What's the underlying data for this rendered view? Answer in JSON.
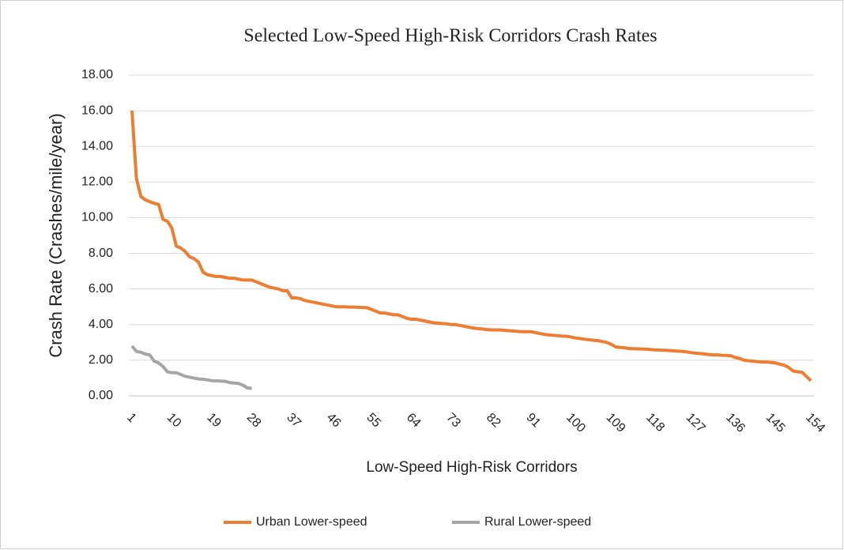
{
  "chart_data": {
    "type": "line",
    "title": "Selected Low-Speed High-Risk Corridors Crash Rates",
    "xlabel": "Low-Speed High-Risk Corridors",
    "ylabel": "Crash Rate (Crashes/mile/year)",
    "categories": [
      "1",
      null,
      null,
      null,
      null,
      null,
      null,
      null,
      null,
      "10",
      null,
      null,
      null,
      null,
      null,
      null,
      null,
      null,
      "19",
      null,
      null,
      null,
      null,
      null,
      null,
      null,
      null,
      "28",
      null,
      null,
      null,
      null,
      null,
      null,
      null,
      null,
      "37",
      null,
      null,
      null,
      null,
      null,
      null,
      null,
      null,
      "46",
      null,
      null,
      null,
      null,
      null,
      null,
      null,
      null,
      "55",
      null,
      null,
      null,
      null,
      null,
      null,
      null,
      null,
      "64",
      null,
      null,
      null,
      null,
      null,
      null,
      null,
      null,
      "73",
      null,
      null,
      null,
      null,
      null,
      null,
      null,
      null,
      "82",
      null,
      null,
      null,
      null,
      null,
      null,
      null,
      null,
      "91",
      null,
      null,
      null,
      null,
      null,
      null,
      null,
      null,
      "100",
      null,
      null,
      null,
      null,
      null,
      null,
      null,
      null,
      "109",
      null,
      null,
      null,
      null,
      null,
      null,
      null,
      null,
      "118",
      null,
      null,
      null,
      null,
      null,
      null,
      null,
      null,
      "127",
      null,
      null,
      null,
      null,
      null,
      null,
      null,
      null,
      "136",
      null,
      null,
      null,
      null,
      null,
      null,
      null,
      null,
      "145",
      null,
      null,
      null,
      null,
      null,
      null,
      null,
      null,
      "154"
    ],
    "series": [
      {
        "name": "Urban Lower-speed",
        "color": "#ed7d31",
        "values": [
          16.0,
          12.2,
          11.2,
          11.0,
          10.9,
          10.8,
          10.75,
          9.9,
          9.8,
          9.4,
          8.4,
          8.3,
          8.1,
          7.8,
          7.7,
          7.5,
          6.95,
          6.8,
          6.75,
          6.7,
          6.7,
          6.65,
          6.6,
          6.6,
          6.55,
          6.5,
          6.5,
          6.5,
          6.4,
          6.3,
          6.2,
          6.1,
          6.05,
          6.0,
          5.9,
          5.9,
          5.5,
          5.5,
          5.45,
          5.35,
          5.3,
          5.25,
          5.2,
          5.15,
          5.1,
          5.05,
          5.0,
          5.0,
          5.0,
          4.98,
          4.98,
          4.97,
          4.96,
          4.95,
          4.85,
          4.75,
          4.65,
          4.65,
          4.6,
          4.55,
          4.55,
          4.45,
          4.35,
          4.3,
          4.3,
          4.25,
          4.2,
          4.15,
          4.1,
          4.08,
          4.06,
          4.04,
          4.0,
          4.0,
          3.95,
          3.9,
          3.85,
          3.8,
          3.78,
          3.75,
          3.72,
          3.7,
          3.7,
          3.7,
          3.68,
          3.66,
          3.64,
          3.62,
          3.6,
          3.6,
          3.6,
          3.55,
          3.5,
          3.45,
          3.42,
          3.4,
          3.38,
          3.35,
          3.35,
          3.3,
          3.25,
          3.22,
          3.18,
          3.15,
          3.12,
          3.1,
          3.05,
          3.0,
          2.9,
          2.75,
          2.72,
          2.7,
          2.66,
          2.65,
          2.64,
          2.63,
          2.62,
          2.6,
          2.58,
          2.57,
          2.56,
          2.55,
          2.53,
          2.51,
          2.5,
          2.47,
          2.43,
          2.4,
          2.38,
          2.35,
          2.32,
          2.3,
          2.3,
          2.28,
          2.27,
          2.25,
          2.15,
          2.1,
          2.0,
          1.97,
          1.95,
          1.92,
          1.9,
          1.9,
          1.88,
          1.85,
          1.78,
          1.72,
          1.6,
          1.4,
          1.35,
          1.33,
          1.1,
          0.85
        ]
      },
      {
        "name": "Rural Lower-speed",
        "color": "#a5a5a5",
        "values": [
          2.8,
          2.5,
          2.45,
          2.35,
          2.3,
          1.95,
          1.85,
          1.65,
          1.35,
          1.3,
          1.3,
          1.2,
          1.1,
          1.05,
          1.0,
          0.95,
          0.93,
          0.9,
          0.85,
          0.85,
          0.83,
          0.82,
          0.75,
          0.72,
          0.7,
          0.6,
          0.45,
          0.42,
          null,
          null,
          null,
          null,
          null,
          null,
          null,
          null,
          null,
          null,
          null,
          null,
          null,
          null,
          null,
          null,
          null,
          null,
          null,
          null,
          null,
          null,
          null,
          null,
          null,
          null,
          null,
          null,
          null,
          null,
          null,
          null,
          null,
          null,
          null,
          null,
          null,
          null,
          null,
          null,
          null,
          null,
          null,
          null,
          null,
          null,
          null,
          null,
          null,
          null,
          null,
          null,
          null,
          null,
          null,
          null,
          null,
          null,
          null,
          null,
          null,
          null,
          null,
          null,
          null,
          null,
          null,
          null,
          null,
          null,
          null,
          null,
          null,
          null,
          null,
          null,
          null,
          null,
          null,
          null,
          null,
          null,
          null,
          null,
          null,
          null,
          null,
          null,
          null,
          null,
          null,
          null,
          null,
          null,
          null,
          null,
          null,
          null,
          null,
          null,
          null,
          null,
          null,
          null,
          null,
          null,
          null,
          null,
          null,
          null,
          null,
          null,
          null,
          null,
          null,
          null,
          null,
          null,
          null,
          null,
          null,
          null,
          null,
          null,
          null,
          null
        ]
      }
    ],
    "ylim": [
      0,
      18
    ],
    "yticks": [
      {
        "value": 0,
        "label": "0.00"
      },
      {
        "value": 2,
        "label": "2.00"
      },
      {
        "value": 4,
        "label": "4.00"
      },
      {
        "value": 6,
        "label": "6.00"
      },
      {
        "value": 8,
        "label": "8.00"
      },
      {
        "value": 10,
        "label": "10.00"
      },
      {
        "value": 12,
        "label": "12.00"
      },
      {
        "value": 14,
        "label": "14.00"
      },
      {
        "value": 16,
        "label": "16.00"
      },
      {
        "value": 18,
        "label": "18.00"
      }
    ],
    "grid": true,
    "legend": "bottom"
  }
}
